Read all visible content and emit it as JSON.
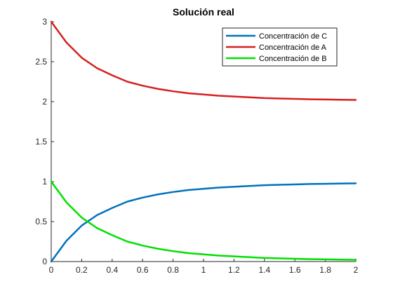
{
  "chart_data": {
    "type": "line",
    "title": "Solución real",
    "xlabel": "",
    "ylabel": "",
    "xlim": [
      0,
      2
    ],
    "ylim": [
      0,
      3
    ],
    "x_ticks": [
      0,
      0.2,
      0.4,
      0.6,
      0.8,
      1,
      1.2,
      1.4,
      1.6,
      1.8,
      2
    ],
    "x_tick_labels": [
      "0",
      "0.2",
      "0.4",
      "0.6",
      "0.8",
      "1",
      "1.2",
      "1.4",
      "1.6",
      "1.8",
      "2"
    ],
    "y_ticks": [
      0,
      0.5,
      1,
      1.5,
      2,
      2.5,
      3
    ],
    "y_tick_labels": [
      "0",
      "0.5",
      "1",
      "1.5",
      "2",
      "2.5",
      "3"
    ],
    "grid": false,
    "legend_position": "top-right",
    "x": [
      0,
      0.1,
      0.2,
      0.3,
      0.4,
      0.5,
      0.6,
      0.7,
      0.8,
      0.9,
      1.0,
      1.1,
      1.2,
      1.3,
      1.4,
      1.5,
      1.6,
      1.7,
      1.8,
      1.9,
      2.0
    ],
    "series": [
      {
        "name": "Concentración de C",
        "color": "#0072BD",
        "values": [
          0,
          0.26,
          0.45,
          0.58,
          0.67,
          0.75,
          0.8,
          0.84,
          0.87,
          0.895,
          0.91,
          0.925,
          0.935,
          0.945,
          0.955,
          0.96,
          0.965,
          0.97,
          0.973,
          0.976,
          0.978
        ]
      },
      {
        "name": "Concentración de A",
        "color": "#D62020",
        "values": [
          3,
          2.74,
          2.55,
          2.42,
          2.33,
          2.25,
          2.2,
          2.16,
          2.13,
          2.105,
          2.09,
          2.075,
          2.065,
          2.055,
          2.045,
          2.04,
          2.035,
          2.03,
          2.027,
          2.024,
          2.022
        ]
      },
      {
        "name": "Concentración de B",
        "color": "#00E000",
        "values": [
          1,
          0.74,
          0.55,
          0.42,
          0.33,
          0.25,
          0.2,
          0.16,
          0.13,
          0.105,
          0.09,
          0.075,
          0.065,
          0.055,
          0.045,
          0.04,
          0.035,
          0.03,
          0.027,
          0.024,
          0.022
        ]
      }
    ]
  }
}
